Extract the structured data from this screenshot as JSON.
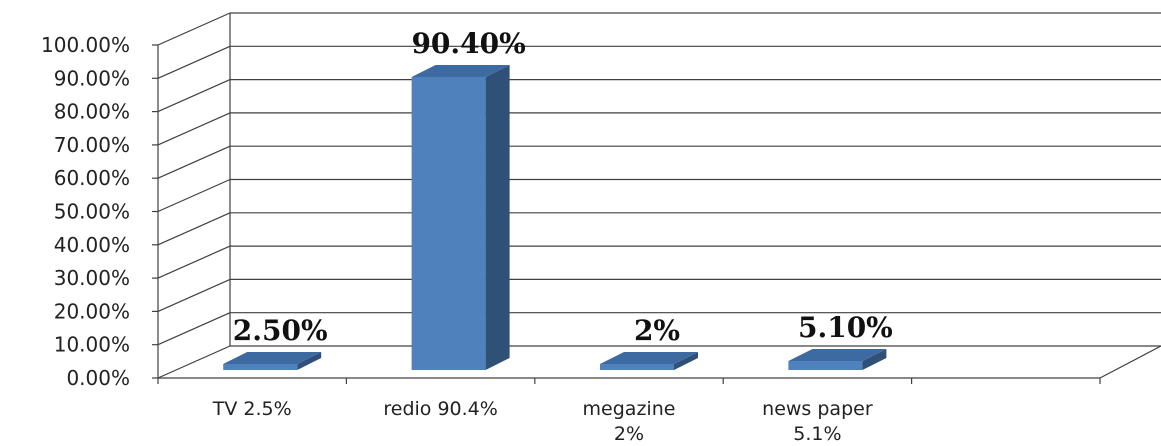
{
  "chart_data": {
    "type": "bar",
    "categories": [
      [
        "TV 2.5%"
      ],
      [
        "redio 90.4%"
      ],
      [
        "megazine",
        "2%"
      ],
      [
        "news paper",
        "5.1%"
      ]
    ],
    "values": [
      2.5,
      90.4,
      2,
      5.1
    ],
    "data_labels": [
      "2.50%",
      "90.40%",
      "2%",
      "5.10%"
    ],
    "y_ticks": [
      "0.00%",
      "10.00%",
      "20.00%",
      "30.00%",
      "40.00%",
      "50.00%",
      "60.00%",
      "70.00%",
      "80.00%",
      "90.00%",
      "100.00%"
    ],
    "ylim": [
      0,
      100
    ],
    "grid": true,
    "style": "3d-column",
    "colors": {
      "bar_front": "#4f81bd",
      "bar_side": "#2f5178",
      "bar_top": "#3d6aa0",
      "grid": "#404040",
      "axis": "#404040"
    }
  }
}
